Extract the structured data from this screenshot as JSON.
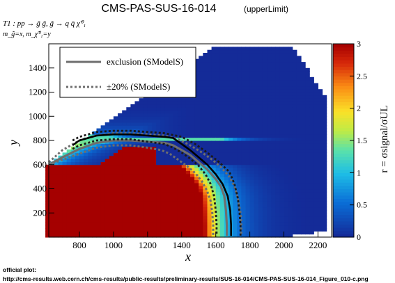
{
  "header": {
    "title": "CMS-PAS-SUS-16-014",
    "title_suffix": "(upperLimit)"
  },
  "process": {
    "line1": "T1 : pp → g̃ g̃, g̃ → q q̄ χ̃⁰₁",
    "line2": "m_g̃=x, m_χ̃⁰₁=y"
  },
  "legend": {
    "exclusion_label": "exclusion (SModelS)",
    "band_label": "±20% (SModelS)"
  },
  "footer": {
    "label": "official plot:",
    "url": "http://cms-results.web.cern.ch/cms-results/public-results/preliminary-results/SUS-16-014/CMS-PAS-SUS-16-014_Figure_010-c.png"
  },
  "colors": {
    "exclusion": "#000000",
    "smodels": "#6e6e6e",
    "band": "#1a1a1a",
    "saturated": "#a50000",
    "low": "#1f3fa8"
  },
  "chart_data": {
    "type": "heatmap",
    "xlabel": "x",
    "ylabel": "y",
    "zlabel": "r = σsignal/σUL",
    "xlim": [
      620,
      2280
    ],
    "ylim": [
      0,
      1600
    ],
    "zlim": [
      0,
      3
    ],
    "x_ticks": [
      800,
      1000,
      1200,
      1400,
      1600,
      1800,
      2000,
      2200
    ],
    "y_ticks": [
      200,
      400,
      600,
      800,
      1000,
      1200,
      1400
    ],
    "z_ticks": [
      0,
      0.5,
      1,
      1.5,
      2,
      2.5,
      3
    ],
    "series": [
      {
        "name": "exclusion (SModelS)",
        "style": "solid",
        "points": [
          [
            620,
            600
          ],
          [
            700,
            660
          ],
          [
            800,
            730
          ],
          [
            900,
            780
          ],
          [
            1000,
            800
          ],
          [
            1100,
            800
          ],
          [
            1200,
            790
          ],
          [
            1300,
            780
          ],
          [
            1350,
            760
          ],
          [
            1400,
            720
          ],
          [
            1450,
            680
          ],
          [
            1500,
            620
          ],
          [
            1550,
            560
          ],
          [
            1600,
            480
          ],
          [
            1630,
            420
          ],
          [
            1650,
            340
          ],
          [
            1660,
            220
          ],
          [
            1665,
            100
          ],
          [
            1665,
            10
          ]
        ]
      },
      {
        "name": "±20% (SModelS) upper",
        "style": "dotted",
        "points": [
          [
            620,
            620
          ],
          [
            700,
            720
          ],
          [
            800,
            800
          ],
          [
            900,
            840
          ],
          [
            1000,
            860
          ],
          [
            1100,
            860
          ],
          [
            1200,
            850
          ],
          [
            1300,
            840
          ],
          [
            1380,
            810
          ],
          [
            1450,
            760
          ],
          [
            1520,
            700
          ],
          [
            1580,
            640
          ],
          [
            1630,
            580
          ],
          [
            1680,
            500
          ],
          [
            1710,
            420
          ],
          [
            1730,
            320
          ],
          [
            1745,
            200
          ],
          [
            1750,
            100
          ],
          [
            1750,
            10
          ]
        ]
      },
      {
        "name": "±20% (SModelS) lower",
        "style": "dotted",
        "points": [
          [
            620,
            600
          ],
          [
            700,
            640
          ],
          [
            800,
            690
          ],
          [
            900,
            740
          ],
          [
            1000,
            760
          ],
          [
            1100,
            760
          ],
          [
            1200,
            740
          ],
          [
            1280,
            720
          ],
          [
            1330,
            690
          ],
          [
            1380,
            640
          ],
          [
            1430,
            590
          ],
          [
            1480,
            530
          ],
          [
            1520,
            460
          ],
          [
            1550,
            380
          ],
          [
            1570,
            300
          ],
          [
            1580,
            200
          ],
          [
            1585,
            100
          ],
          [
            1585,
            10
          ]
        ]
      },
      {
        "name": "official exclusion",
        "style": "solid",
        "points": [
          [
            760,
            760
          ],
          [
            800,
            800
          ],
          [
            900,
            840
          ],
          [
            1000,
            850
          ],
          [
            1100,
            850
          ],
          [
            1200,
            840
          ],
          [
            1300,
            830
          ],
          [
            1350,
            820
          ],
          [
            1400,
            770
          ],
          [
            1450,
            720
          ],
          [
            1500,
            660
          ],
          [
            1550,
            600
          ],
          [
            1600,
            520
          ],
          [
            1640,
            440
          ],
          [
            1670,
            340
          ],
          [
            1685,
            220
          ],
          [
            1690,
            100
          ],
          [
            1690,
            10
          ]
        ]
      },
      {
        "name": "official ±1σ upper",
        "style": "dashed",
        "points": [
          [
            760,
            800
          ],
          [
            800,
            830
          ],
          [
            900,
            870
          ],
          [
            1000,
            880
          ],
          [
            1100,
            880
          ],
          [
            1200,
            870
          ],
          [
            1300,
            860
          ],
          [
            1400,
            830
          ],
          [
            1480,
            770
          ],
          [
            1550,
            700
          ],
          [
            1620,
            620
          ],
          [
            1680,
            540
          ],
          [
            1710,
            440
          ],
          [
            1730,
            320
          ],
          [
            1740,
            200
          ],
          [
            1745,
            100
          ],
          [
            1745,
            10
          ]
        ]
      },
      {
        "name": "official ±1σ lower",
        "style": "dashed",
        "points": [
          [
            760,
            730
          ],
          [
            800,
            760
          ],
          [
            900,
            800
          ],
          [
            1000,
            810
          ],
          [
            1100,
            810
          ],
          [
            1200,
            790
          ],
          [
            1300,
            770
          ],
          [
            1350,
            740
          ],
          [
            1400,
            700
          ],
          [
            1450,
            650
          ],
          [
            1500,
            590
          ],
          [
            1540,
            520
          ],
          [
            1570,
            440
          ],
          [
            1590,
            340
          ],
          [
            1600,
            220
          ],
          [
            1605,
            100
          ],
          [
            1605,
            10
          ]
        ]
      }
    ]
  }
}
